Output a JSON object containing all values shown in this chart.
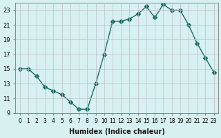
{
  "x": [
    0,
    1,
    2,
    3,
    4,
    5,
    6,
    7,
    8,
    9,
    10,
    11,
    12,
    13,
    14,
    15,
    16,
    17,
    18,
    19,
    20,
    21,
    22,
    23
  ],
  "y": [
    15,
    15,
    14,
    12.5,
    12,
    11.5,
    10.5,
    9.5,
    9.5,
    13,
    17,
    21.5,
    21.5,
    21.8,
    22.5,
    23.5,
    22,
    23.8,
    23,
    23,
    21,
    18.5,
    16.5,
    14.5
  ],
  "line_color": "#1a6b5e",
  "marker": "D",
  "marker_size": 3,
  "bg_color": "#d7f0f0",
  "grid_color": "#c0c0c8",
  "xlabel": "Humidex (Indice chaleur)",
  "xlim": [
    -0.5,
    23.5
  ],
  "ylim": [
    9,
    24
  ],
  "yticks": [
    9,
    11,
    13,
    15,
    17,
    19,
    21,
    23
  ],
  "xtick_labels": [
    "0",
    "1",
    "2",
    "3",
    "4",
    "5",
    "6",
    "7",
    "8",
    "9",
    "10",
    "11",
    "12",
    "13",
    "14",
    "15",
    "16",
    "17",
    "18",
    "19",
    "20",
    "21",
    "22",
    "23"
  ]
}
